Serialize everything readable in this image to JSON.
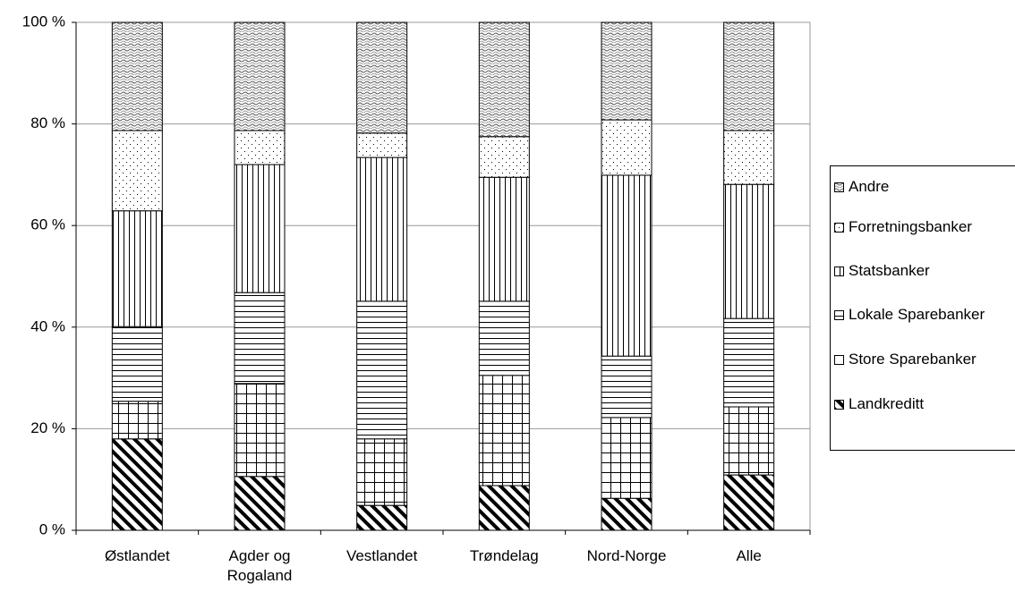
{
  "chart_data": {
    "type": "stacked_bar_100",
    "categories": [
      "Østlandet",
      "Agder og Rogaland",
      "Vestlandet",
      "Trøndelag",
      "Nord-Norge",
      "Alle"
    ],
    "series": [
      {
        "name": "Landkreditt",
        "color": "#000000",
        "values": [
          18.0,
          10.6,
          4.9,
          8.8,
          6.3,
          10.9
        ]
      },
      {
        "name": "Store Sparebanker",
        "color": "#000000",
        "values": [
          7.4,
          18.3,
          13.1,
          21.7,
          15.9,
          13.4
        ]
      },
      {
        "name": "Lokale Sparebanker",
        "color": "#000000",
        "values": [
          14.7,
          17.9,
          27.1,
          14.6,
          12.1,
          17.4
        ]
      },
      {
        "name": "Statsbanker",
        "color": "#000000",
        "values": [
          22.8,
          25.2,
          28.3,
          24.4,
          35.6,
          26.4
        ]
      },
      {
        "name": "Forretningsbanker",
        "color": "#000000",
        "values": [
          15.8,
          6.7,
          4.8,
          8.0,
          10.9,
          10.6
        ]
      },
      {
        "name": "Andre",
        "color": "#000000",
        "values": [
          21.3,
          21.3,
          21.8,
          22.5,
          19.2,
          21.3
        ]
      }
    ],
    "ylim": [
      0,
      100
    ],
    "yticks": [
      {
        "value": 0,
        "label": "0 %"
      },
      {
        "value": 20,
        "label": "20 %"
      },
      {
        "value": 40,
        "label": "40 %"
      },
      {
        "value": 60,
        "label": "60 %"
      },
      {
        "value": 80,
        "label": "80 %"
      },
      {
        "value": 100,
        "label": "100 %"
      }
    ],
    "grid": true,
    "legend": "right"
  }
}
